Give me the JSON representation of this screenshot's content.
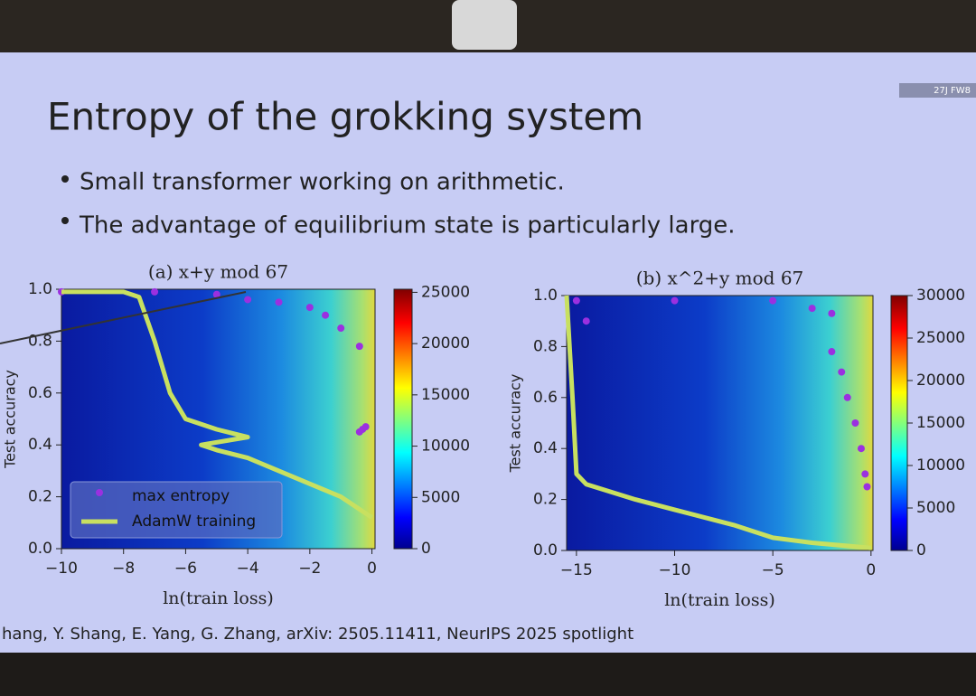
{
  "monitor_label": "27J FW8",
  "slide": {
    "title": "Entropy of the grokking system",
    "bullets": [
      "Small transformer working on arithmetic.",
      "The advantage of equilibrium state is particularly large."
    ],
    "citation": "hang, Y. Shang, E. Yang, G. Zhang, arXiv: 2505.11411, NeurIPS 2025 spotlight"
  },
  "chart_data": [
    {
      "type": "scatter",
      "title": "(a) x+y mod 67",
      "x_label": "ln(train loss)",
      "y_label": "Test accuracy",
      "xlim": [
        -10,
        0.1
      ],
      "ylim": [
        0,
        1
      ],
      "xticks": [
        {
          "value": -10,
          "label": "−10"
        },
        {
          "value": -8,
          "label": "−8"
        },
        {
          "value": -6,
          "label": "−6"
        },
        {
          "value": -4,
          "label": "−4"
        },
        {
          "value": -2,
          "label": "−2"
        },
        0
      ],
      "yticks": [
        {
          "value": 0,
          "label": "0.0"
        },
        0.2,
        0.4,
        0.6,
        0.8,
        {
          "value": 1,
          "label": "1.0"
        }
      ],
      "clim": [
        0,
        25300
      ],
      "cticks": [
        0,
        5000,
        10000,
        15000,
        20000,
        25000
      ],
      "legend": "lower left",
      "series": [
        {
          "name": "max entropy",
          "color": "#9b30e0",
          "mode": "markers",
          "x": [
            -10,
            -7,
            -5,
            -4,
            -3,
            -2,
            -1.5,
            -1,
            -0.4,
            -0.3,
            -0.2,
            -0.4
          ],
          "values": [
            0.99,
            0.99,
            0.98,
            0.96,
            0.95,
            0.93,
            0.9,
            0.85,
            0.78,
            0.46,
            0.47,
            0.45
          ]
        },
        {
          "name": "AdamW training",
          "color": "#c8e060",
          "mode": "line",
          "x": [
            -10,
            -8,
            -7.5,
            -7,
            -6.5,
            -6,
            -5,
            -4,
            -5.5,
            -5,
            -4,
            -3,
            -2,
            -1,
            0
          ],
          "values": [
            0.99,
            0.99,
            0.97,
            0.8,
            0.6,
            0.5,
            0.46,
            0.43,
            0.4,
            0.38,
            0.35,
            0.3,
            0.25,
            0.2,
            0.12
          ]
        }
      ]
    },
    {
      "type": "scatter",
      "title": "(b) x^2+y mod 67",
      "x_label": "ln(train loss)",
      "y_label": "Test accuracy",
      "xlim": [
        -15.5,
        0.1
      ],
      "ylim": [
        0,
        1
      ],
      "xticks": [
        {
          "value": -15,
          "label": "−15"
        },
        {
          "value": -10,
          "label": "−10"
        },
        {
          "value": -5,
          "label": "−5"
        },
        0
      ],
      "yticks": [
        {
          "value": 0,
          "label": "0.0"
        },
        0.2,
        0.4,
        0.6,
        0.8,
        {
          "value": 1,
          "label": "1.0"
        }
      ],
      "clim": [
        0,
        30000
      ],
      "cticks": [
        0,
        5000,
        10000,
        15000,
        20000,
        25000,
        30000
      ],
      "series": [
        {
          "name": "max entropy",
          "color": "#9b30e0",
          "mode": "markers",
          "x": [
            -15,
            -14.5,
            -10,
            -5,
            -3,
            -2,
            -2,
            -1.5,
            -1.2,
            -0.8,
            -0.5,
            -0.3,
            -0.2
          ],
          "values": [
            0.98,
            0.9,
            0.98,
            0.98,
            0.95,
            0.93,
            0.78,
            0.7,
            0.6,
            0.5,
            0.4,
            0.3,
            0.25
          ]
        },
        {
          "name": "AdamW training",
          "color": "#c8e060",
          "mode": "line",
          "x": [
            -15.5,
            -15.2,
            -15,
            -14.5,
            -12,
            -10,
            -7,
            -5,
            -3,
            0
          ],
          "values": [
            1.0,
            0.6,
            0.3,
            0.26,
            0.2,
            0.16,
            0.1,
            0.05,
            0.03,
            0.01
          ]
        }
      ]
    }
  ]
}
